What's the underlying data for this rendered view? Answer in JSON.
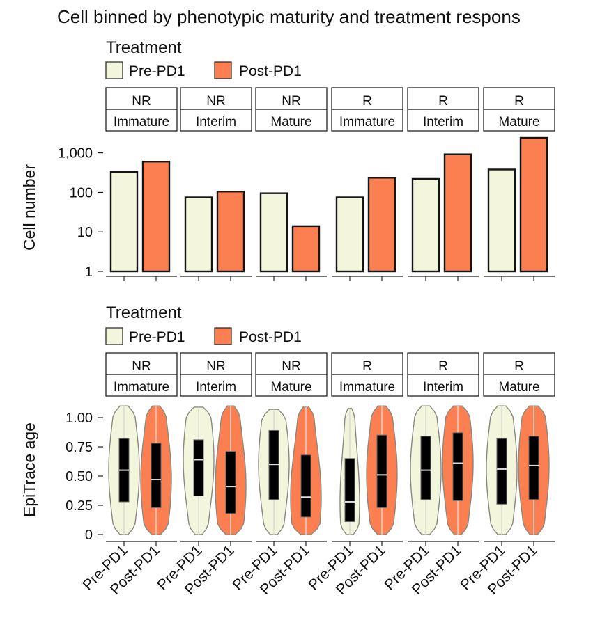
{
  "title": "Cell binned by phenotypic maturity and treatment respons",
  "colors": {
    "pre": "#f4f5dd",
    "post": "#fb7f50",
    "edge": "#222222",
    "box": "#000000"
  },
  "legend": {
    "title": "Treatment",
    "items": [
      "Pre-PD1",
      "Post-PD1"
    ]
  },
  "x_tick_labels": [
    "Pre-PD1",
    "Post-PD1"
  ],
  "panels": [
    {
      "response": "NR",
      "maturity": "Immature"
    },
    {
      "response": "NR",
      "maturity": "Interim"
    },
    {
      "response": "NR",
      "maturity": "Mature"
    },
    {
      "response": "R",
      "maturity": "Immature"
    },
    {
      "response": "R",
      "maturity": "Interim"
    },
    {
      "response": "R",
      "maturity": "Mature"
    }
  ],
  "chart_data": [
    {
      "type": "bar",
      "title": "",
      "ylabel": "Cell number",
      "xlabel": "",
      "yscale": "log10",
      "ylim": [
        1,
        2500
      ],
      "yticks": [
        1,
        10,
        100,
        1000
      ],
      "ytick_labels": [
        "1",
        "10",
        "100",
        "1,000"
      ],
      "facets": [
        "NR Immature",
        "NR Interim",
        "NR Mature",
        "R Immature",
        "R Interim",
        "R Mature"
      ],
      "series": [
        {
          "name": "Pre-PD1",
          "values": [
            330,
            75,
            95,
            75,
            220,
            380
          ]
        },
        {
          "name": "Post-PD1",
          "values": [
            600,
            105,
            14,
            235,
            920,
            2400
          ]
        }
      ]
    },
    {
      "type": "violin",
      "title": "",
      "ylabel": "EpiTrace age",
      "xlabel": "",
      "ylim": [
        0,
        1.1
      ],
      "yticks": [
        0,
        0.25,
        0.5,
        0.75,
        1.0
      ],
      "ytick_labels": [
        "0",
        "0.25",
        "0.50",
        "0.75",
        "1.00"
      ],
      "facets": [
        "NR Immature",
        "NR Interim",
        "NR Mature",
        "R Immature",
        "R Interim",
        "R Mature"
      ],
      "series": [
        {
          "name": "Pre-PD1",
          "min": [
            0,
            0,
            0,
            0,
            0,
            0
          ],
          "max": [
            1.1,
            1.09,
            1.07,
            1.08,
            1.1,
            1.1
          ],
          "q1": [
            0.28,
            0.33,
            0.3,
            0.11,
            0.3,
            0.26
          ],
          "median": [
            0.55,
            0.64,
            0.6,
            0.28,
            0.55,
            0.56
          ],
          "q3": [
            0.82,
            0.81,
            0.89,
            0.65,
            0.84,
            0.82
          ]
        },
        {
          "name": "Post-PD1",
          "min": [
            0,
            0,
            0,
            0,
            0,
            0
          ],
          "max": [
            1.1,
            1.1,
            1.09,
            1.1,
            1.1,
            1.1
          ],
          "q1": [
            0.23,
            0.18,
            0.15,
            0.23,
            0.29,
            0.3
          ],
          "median": [
            0.47,
            0.41,
            0.32,
            0.51,
            0.61,
            0.59
          ],
          "q3": [
            0.78,
            0.71,
            0.68,
            0.85,
            0.87,
            0.84
          ]
        }
      ]
    }
  ]
}
